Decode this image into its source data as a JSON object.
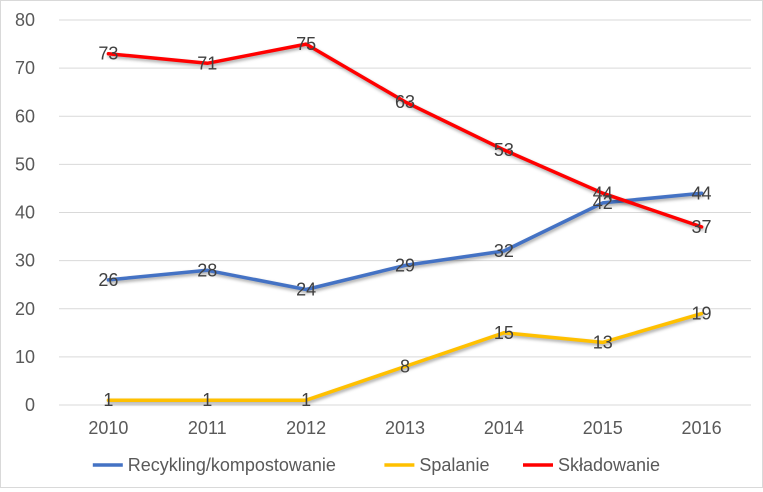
{
  "chart_data": {
    "type": "line",
    "title": "",
    "xlabel": "",
    "ylabel": "",
    "categories": [
      "2010",
      "2011",
      "2012",
      "2013",
      "2014",
      "2015",
      "2016"
    ],
    "ylim": [
      0,
      80
    ],
    "yticks": [
      0,
      10,
      20,
      30,
      40,
      50,
      60,
      70,
      80
    ],
    "grid": true,
    "legend_position": "bottom",
    "series": [
      {
        "name": "Recykling/kompostowanie",
        "color": "#4472C4",
        "values": [
          26,
          28,
          24,
          29,
          32,
          42,
          44
        ]
      },
      {
        "name": "Spalanie",
        "color": "#FFC000",
        "values": [
          1,
          1,
          1,
          8,
          15,
          13,
          19
        ]
      },
      {
        "name": "Składowanie",
        "color": "#FF0000",
        "values": [
          73,
          71,
          75,
          63,
          53,
          44,
          37
        ]
      }
    ]
  }
}
